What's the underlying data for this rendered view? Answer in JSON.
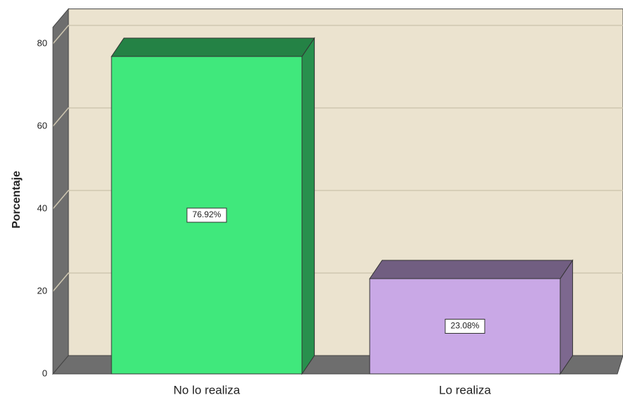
{
  "chart_data": {
    "type": "bar3d",
    "ylabel": "Porcentaje",
    "categories": [
      "No lo realiza",
      "Lo realiza"
    ],
    "values": [
      76.92,
      23.08
    ],
    "value_labels": [
      "76.92%",
      "23.08%"
    ],
    "colors": [
      "#40e87c",
      "#c9a8e6"
    ],
    "ylim": [
      0,
      84
    ],
    "yticks": [
      0,
      20,
      40,
      60,
      80
    ],
    "grid": true
  }
}
